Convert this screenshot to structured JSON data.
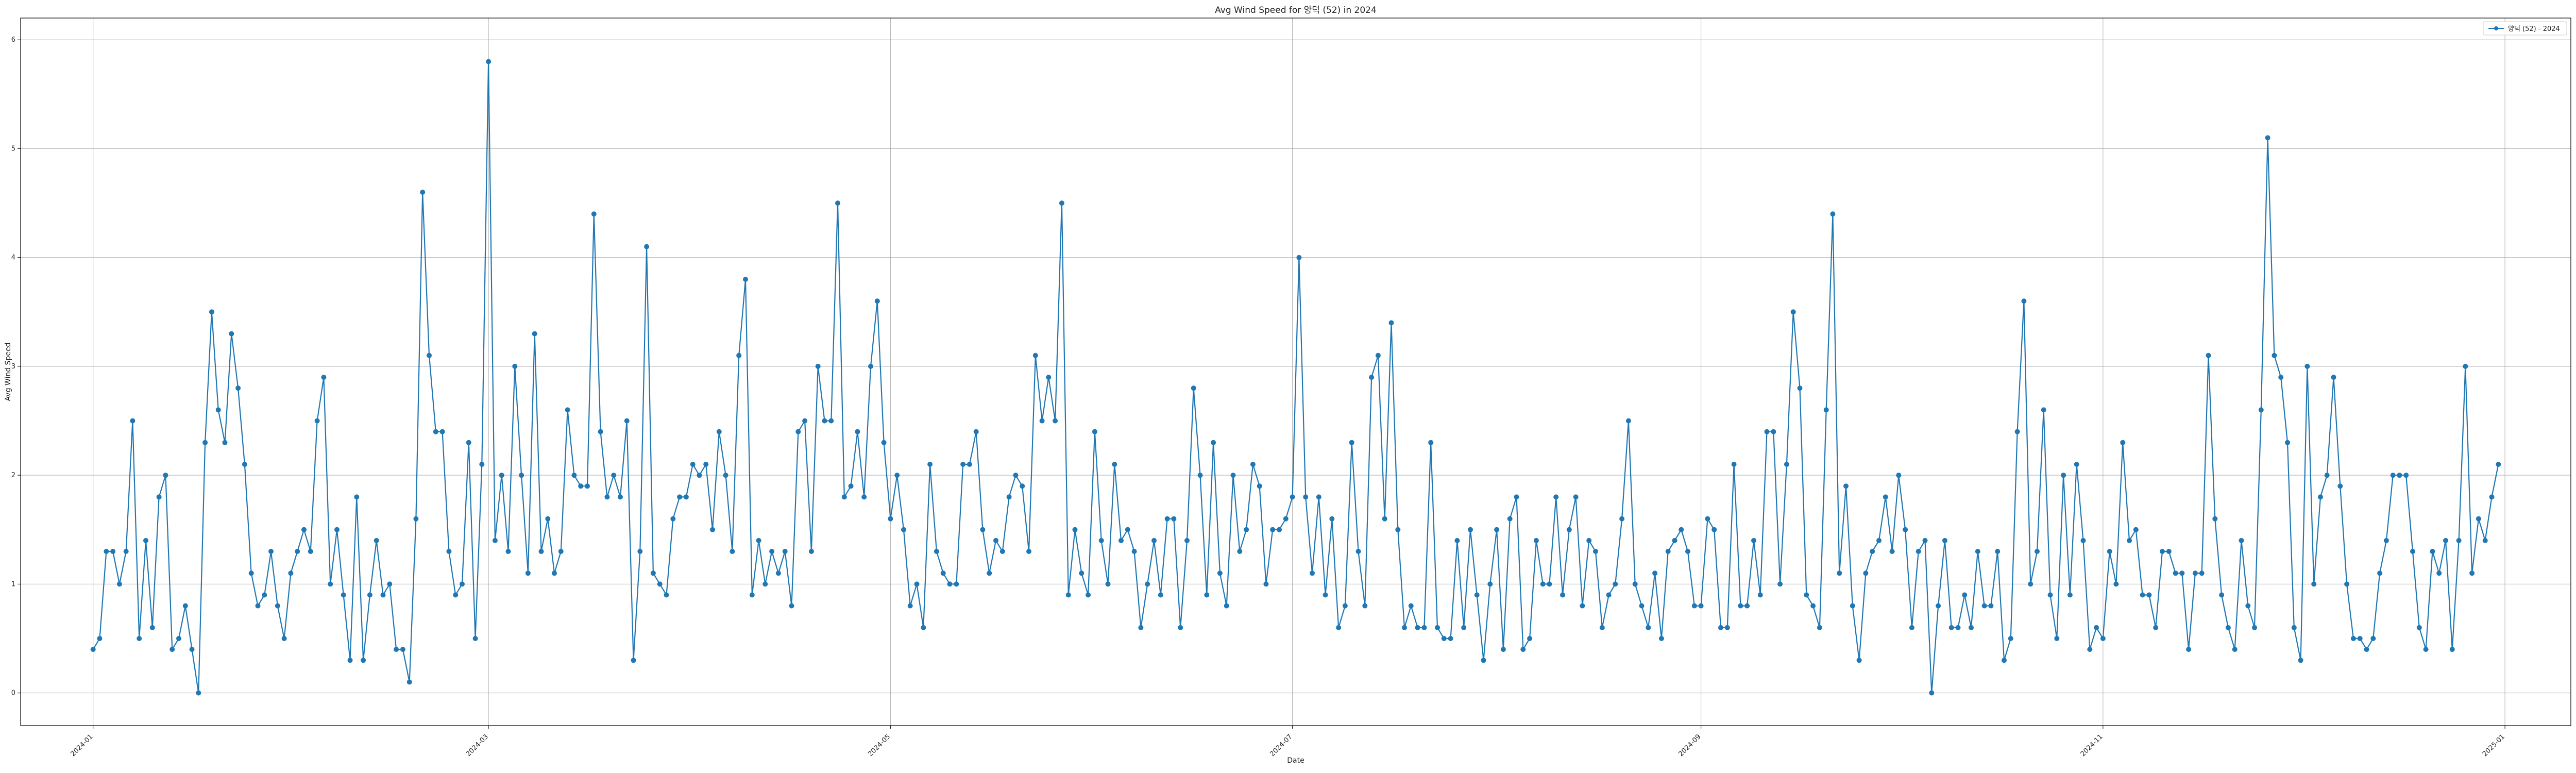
{
  "chart_data": {
    "type": "line",
    "title": "Avg Wind Speed for 양덕 (52) in 2024",
    "xlabel": "Date",
    "ylabel": "Avg Wind Speed",
    "ylim": [
      -0.3,
      6.2
    ],
    "xlim": [
      "2023-12-21",
      "2025-01-11"
    ],
    "grid": true,
    "legend": "top-right",
    "x_ticks": [
      "2024-01",
      "2024-03",
      "2024-05",
      "2024-07",
      "2024-09",
      "2024-11",
      "2025-01"
    ],
    "y_ticks": [
      0,
      1,
      2,
      3,
      4,
      5,
      6
    ],
    "series": [
      {
        "name": "양덕 (52) - 2024",
        "color": "#1f77b4",
        "start_date": "2024-01-01",
        "interval_days": 1,
        "values": [
          0.4,
          0.5,
          1.3,
          1.3,
          1.0,
          1.3,
          2.5,
          0.5,
          1.4,
          0.6,
          1.8,
          2.0,
          0.4,
          0.5,
          0.8,
          0.4,
          0.0,
          2.3,
          3.5,
          2.6,
          2.3,
          3.3,
          2.8,
          2.1,
          1.1,
          0.8,
          0.9,
          1.3,
          0.8,
          0.5,
          1.1,
          1.3,
          1.5,
          1.3,
          2.5,
          2.9,
          1.0,
          1.5,
          0.9,
          0.3,
          1.8,
          0.3,
          0.9,
          1.4,
          0.9,
          1.0,
          0.4,
          0.4,
          0.1,
          1.6,
          4.6,
          3.1,
          2.4,
          2.4,
          1.3,
          0.9,
          1.0,
          2.3,
          0.5,
          2.1,
          5.8,
          1.4,
          2.0,
          1.3,
          3.0,
          2.0,
          1.1,
          3.3,
          1.3,
          1.6,
          1.1,
          1.3,
          2.6,
          2.0,
          1.9,
          1.9,
          4.4,
          2.4,
          1.8,
          2.0,
          1.8,
          2.5,
          0.3,
          1.3,
          4.1,
          1.1,
          1.0,
          0.9,
          1.6,
          1.8,
          1.8,
          2.1,
          2.0,
          2.1,
          1.5,
          2.4,
          2.0,
          1.3,
          3.1,
          3.8,
          0.9,
          1.4,
          1.0,
          1.3,
          1.1,
          1.3,
          0.8,
          2.4,
          2.5,
          1.3,
          3.0,
          2.5,
          2.5,
          4.5,
          1.8,
          1.9,
          2.4,
          1.8,
          3.0,
          3.6,
          2.3,
          1.6,
          2.0,
          1.5,
          0.8,
          1.0,
          0.6,
          2.1,
          1.3,
          1.1,
          1.0,
          1.0,
          2.1,
          2.1,
          2.4,
          1.5,
          1.1,
          1.4,
          1.3,
          1.8,
          2.0,
          1.9,
          1.3,
          3.1,
          2.5,
          2.9,
          2.5,
          4.5,
          0.9,
          1.5,
          1.1,
          0.9,
          2.4,
          1.4,
          1.0,
          2.1,
          1.4,
          1.5,
          1.3,
          0.6,
          1.0,
          1.4,
          0.9,
          1.6,
          1.6,
          0.6,
          1.4,
          2.8,
          2.0,
          0.9,
          2.3,
          1.1,
          0.8,
          2.0,
          1.3,
          1.5,
          2.1,
          1.9,
          1.0,
          1.5,
          1.5,
          1.6,
          1.8,
          4.0,
          1.8,
          1.1,
          1.8,
          0.9,
          1.6,
          0.6,
          0.8,
          2.3,
          1.3,
          0.8,
          2.9,
          3.1,
          1.6,
          3.4,
          1.5,
          0.6,
          0.8,
          0.6,
          0.6,
          2.3,
          0.6,
          0.5,
          0.5,
          1.4,
          0.6,
          1.5,
          0.9,
          0.3,
          1.0,
          1.5,
          0.4,
          1.6,
          1.8,
          0.4,
          0.5,
          1.4,
          1.0,
          1.0,
          1.8,
          0.9,
          1.5,
          1.8,
          0.8,
          1.4,
          1.3,
          0.6,
          0.9,
          1.0,
          1.6,
          2.5,
          1.0,
          0.8,
          0.6,
          1.1,
          0.5,
          1.3,
          1.4,
          1.5,
          1.3,
          0.8,
          0.8,
          1.6,
          1.5,
          0.6,
          0.6,
          2.1,
          0.8,
          0.8,
          1.4,
          0.9,
          2.4,
          2.4,
          1.0,
          2.1,
          3.5,
          2.8,
          0.9,
          0.8,
          0.6,
          2.6,
          4.4,
          1.1,
          1.9,
          0.8,
          0.3,
          1.1,
          1.3,
          1.4,
          1.8,
          1.3,
          2.0,
          1.5,
          0.6,
          1.3,
          1.4,
          0.0,
          0.8,
          1.4,
          0.6,
          0.6,
          0.9,
          0.6,
          1.3,
          0.8,
          0.8,
          1.3,
          0.3,
          0.5,
          2.4,
          3.6,
          1.0,
          1.3,
          2.6,
          0.9,
          0.5,
          2.0,
          0.9,
          2.1,
          1.4,
          0.4,
          0.6,
          0.5,
          1.3,
          1.0,
          2.3,
          1.4,
          1.5,
          0.9,
          0.9,
          0.6,
          1.3,
          1.3,
          1.1,
          1.1,
          0.4,
          1.1,
          1.1,
          3.1,
          1.6,
          0.9,
          0.6,
          0.4,
          1.4,
          0.8,
          0.6,
          2.6,
          5.1,
          3.1,
          2.9,
          2.3,
          0.6,
          0.3,
          3.0,
          1.0,
          1.8,
          2.0,
          2.9,
          1.9,
          1.0,
          0.5,
          0.5,
          0.4,
          0.5,
          1.1,
          1.4,
          2.0,
          2.0,
          2.0,
          1.3,
          0.6,
          0.4,
          1.3,
          1.1,
          1.4,
          0.4,
          1.4,
          3.0,
          1.1,
          1.6,
          1.4,
          1.8,
          2.1
        ]
      }
    ]
  }
}
